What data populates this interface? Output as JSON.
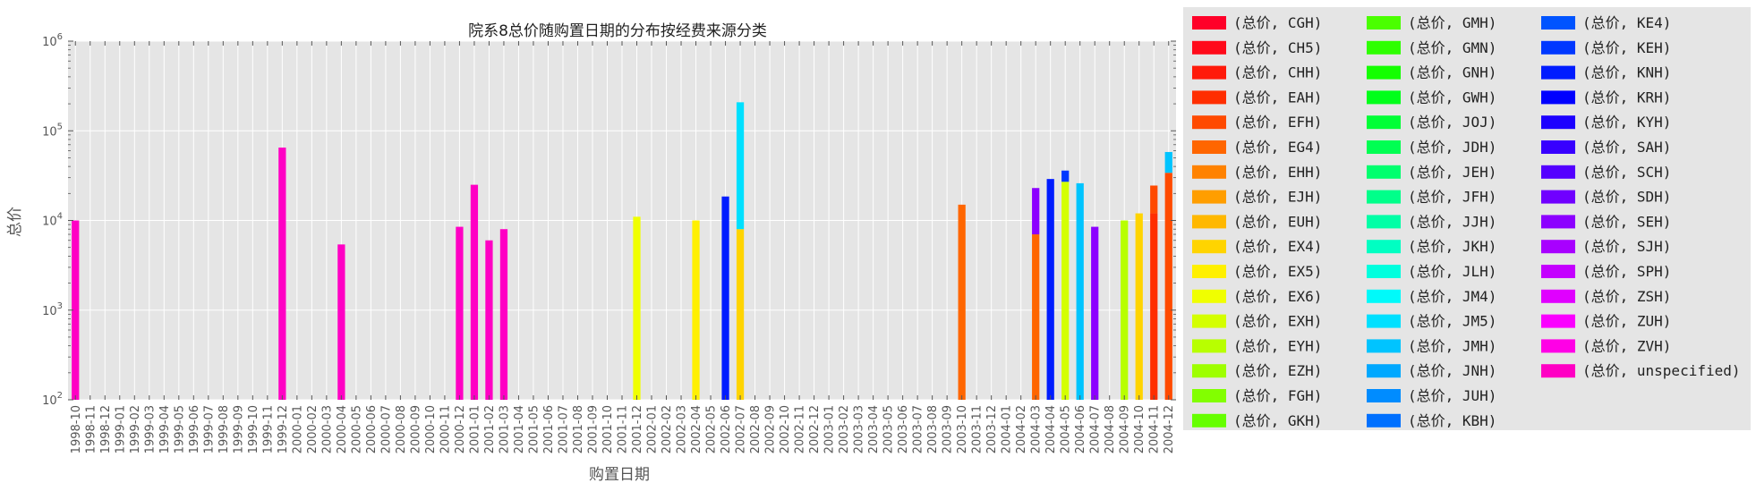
{
  "chart_data": {
    "type": "bar",
    "stacked": true,
    "title": "院系8总价随购置日期的分布按经费来源分类",
    "xlabel": "购置日期",
    "ylabel": "总价",
    "yscale": "log",
    "ylim": [
      100,
      1000000
    ],
    "ytick_labels": [
      {
        "value": 100,
        "base": "10",
        "exp": "2"
      },
      {
        "value": 1000,
        "base": "10",
        "exp": "3"
      },
      {
        "value": 10000,
        "base": "10",
        "exp": "4"
      },
      {
        "value": 100000,
        "base": "10",
        "exp": "5"
      },
      {
        "value": 1000000,
        "base": "10",
        "exp": "6"
      }
    ],
    "grid": true,
    "legend_position": "outside-right",
    "categories": [
      "1998-10",
      "1998-11",
      "1998-12",
      "1999-01",
      "1999-02",
      "1999-03",
      "1999-04",
      "1999-05",
      "1999-06",
      "1999-07",
      "1999-08",
      "1999-09",
      "1999-10",
      "1999-11",
      "1999-12",
      "2000-01",
      "2000-02",
      "2000-03",
      "2000-04",
      "2000-05",
      "2000-06",
      "2000-07",
      "2000-08",
      "2000-09",
      "2000-10",
      "2000-11",
      "2000-12",
      "2001-01",
      "2001-02",
      "2001-03",
      "2001-04",
      "2001-05",
      "2001-06",
      "2001-07",
      "2001-08",
      "2001-09",
      "2001-10",
      "2001-11",
      "2001-12",
      "2002-01",
      "2002-02",
      "2002-03",
      "2002-04",
      "2002-05",
      "2002-06",
      "2002-07",
      "2002-08",
      "2002-09",
      "2002-10",
      "2002-11",
      "2002-12",
      "2003-01",
      "2003-02",
      "2003-03",
      "2003-04",
      "2003-05",
      "2003-06",
      "2003-07",
      "2003-08",
      "2003-09",
      "2003-10",
      "2003-11",
      "2003-12",
      "2004-01",
      "2004-02",
      "2004-03",
      "2004-04",
      "2004-05",
      "2004-06",
      "2004-07",
      "2004-08",
      "2004-09",
      "2004-10",
      "2004-11",
      "2004-12"
    ],
    "legend_labels": [
      "(总价, CGH)",
      "(总价, CH5)",
      "(总价, CHH)",
      "(总价, EAH)",
      "(总价, EFH)",
      "(总价, EG4)",
      "(总价, EHH)",
      "(总价, EJH)",
      "(总价, EUH)",
      "(总价, EX4)",
      "(总价, EX5)",
      "(总价, EX6)",
      "(总价, EXH)",
      "(总价, EYH)",
      "(总价, EZH)",
      "(总价, FGH)",
      "(总价, GKH)",
      "(总价, GMH)",
      "(总价, GMN)",
      "(总价, GNH)",
      "(总价, GWH)",
      "(总价, JOJ)",
      "(总价, JDH)",
      "(总价, JEH)",
      "(总价, JFH)",
      "(总价, JJH)",
      "(总价, JKH)",
      "(总价, JLH)",
      "(总价, JM4)",
      "(总价, JM5)",
      "(总价, JMH)",
      "(总价, JNH)",
      "(总价, JUH)",
      "(总价, KBH)",
      "(总价, KE4)",
      "(总价, KEH)",
      "(总价, KNH)",
      "(总价, KRH)",
      "(总价, KYH)",
      "(总价, SAH)",
      "(总价, SCH)",
      "(总价, SDH)",
      "(总价, SEH)",
      "(总价, SJH)",
      "(总价, SPH)",
      "(总价, ZSH)",
      "(总价, ZUH)",
      "(总价, ZVH)",
      "(总价, unspecified)"
    ],
    "colors": [
      "#ff0029",
      "#ff0a1a",
      "#ff1a0a",
      "#ff2e00",
      "#ff4a00",
      "#ff6600",
      "#ff8200",
      "#ff9e00",
      "#ffb800",
      "#ffd400",
      "#fff000",
      "#f0ff00",
      "#d4ff00",
      "#b8ff00",
      "#9eff00",
      "#82ff00",
      "#66ff00",
      "#4aff00",
      "#2eff00",
      "#14ff00",
      "#00ff1a",
      "#00ff36",
      "#00ff52",
      "#00ff6e",
      "#00ff8a",
      "#00ffa6",
      "#00ffc2",
      "#00ffde",
      "#00fafa",
      "#00e0ff",
      "#00c4ff",
      "#00a8ff",
      "#008cff",
      "#0070ff",
      "#0054ff",
      "#0038ff",
      "#001cff",
      "#0000ff",
      "#1c00ff",
      "#3800ff",
      "#5400ff",
      "#7000ff",
      "#8c00ff",
      "#a800ff",
      "#c400ff",
      "#e000ff",
      "#fa00ff",
      "#ff00e6",
      "#ff00c4"
    ],
    "bars": [
      {
        "x": "1998-10",
        "segments": [
          {
            "series": "(总价, unspecified)",
            "value": 10000
          }
        ]
      },
      {
        "x": "1999-12",
        "segments": [
          {
            "series": "(总价, unspecified)",
            "value": 65000
          }
        ]
      },
      {
        "x": "2000-04",
        "segments": [
          {
            "series": "(总价, unspecified)",
            "value": 5400
          }
        ]
      },
      {
        "x": "2000-12",
        "segments": [
          {
            "series": "(总价, unspecified)",
            "value": 8500
          }
        ]
      },
      {
        "x": "2001-01",
        "segments": [
          {
            "series": "(总价, unspecified)",
            "value": 25000
          }
        ]
      },
      {
        "x": "2001-02",
        "segments": [
          {
            "series": "(总价, unspecified)",
            "value": 6000
          }
        ]
      },
      {
        "x": "2001-03",
        "segments": [
          {
            "series": "(总价, unspecified)",
            "value": 8000
          }
        ]
      },
      {
        "x": "2001-12",
        "segments": [
          {
            "series": "(总价, EX6)",
            "value": 11000
          }
        ]
      },
      {
        "x": "2002-04",
        "segments": [
          {
            "series": "(总价, EX5)",
            "value": 10000
          }
        ]
      },
      {
        "x": "2002-06",
        "segments": [
          {
            "series": "(总价, KNH)",
            "value": 18500
          }
        ]
      },
      {
        "x": "2002-07",
        "segments": [
          {
            "series": "(总价, EX4)",
            "value": 8000
          },
          {
            "series": "(总价, JM5)",
            "value": 200000
          }
        ]
      },
      {
        "x": "2003-10",
        "segments": [
          {
            "series": "(总价, EG4)",
            "value": 15000
          }
        ]
      },
      {
        "x": "2004-03",
        "segments": [
          {
            "series": "(总价, EG4)",
            "value": 7000
          },
          {
            "series": "(总价, SEH)",
            "value": 16000
          }
        ]
      },
      {
        "x": "2004-04",
        "segments": [
          {
            "series": "(总价, KNH)",
            "value": 29000
          }
        ]
      },
      {
        "x": "2004-05",
        "segments": [
          {
            "series": "(总价, EXH)",
            "value": 27000
          },
          {
            "series": "(总价, KEH)",
            "value": 9000
          }
        ]
      },
      {
        "x": "2004-06",
        "segments": [
          {
            "series": "(总价, JMH)",
            "value": 26000
          }
        ]
      },
      {
        "x": "2004-07",
        "segments": [
          {
            "series": "(总价, SEH)",
            "value": 8500
          }
        ]
      },
      {
        "x": "2004-09",
        "segments": [
          {
            "series": "(总价, EYH)",
            "value": 10000
          }
        ]
      },
      {
        "x": "2004-10",
        "segments": [
          {
            "series": "(总价, EX4)",
            "value": 12000
          }
        ]
      },
      {
        "x": "2004-11",
        "segments": [
          {
            "series": "(总价, EAH)",
            "value": 12000
          },
          {
            "series": "(总价, EFH)",
            "value": 12500
          }
        ]
      },
      {
        "x": "2004-12",
        "segments": [
          {
            "series": "(总价, EFH)",
            "value": 34000
          },
          {
            "series": "(总价, JMH)",
            "value": 24000
          }
        ]
      }
    ]
  }
}
